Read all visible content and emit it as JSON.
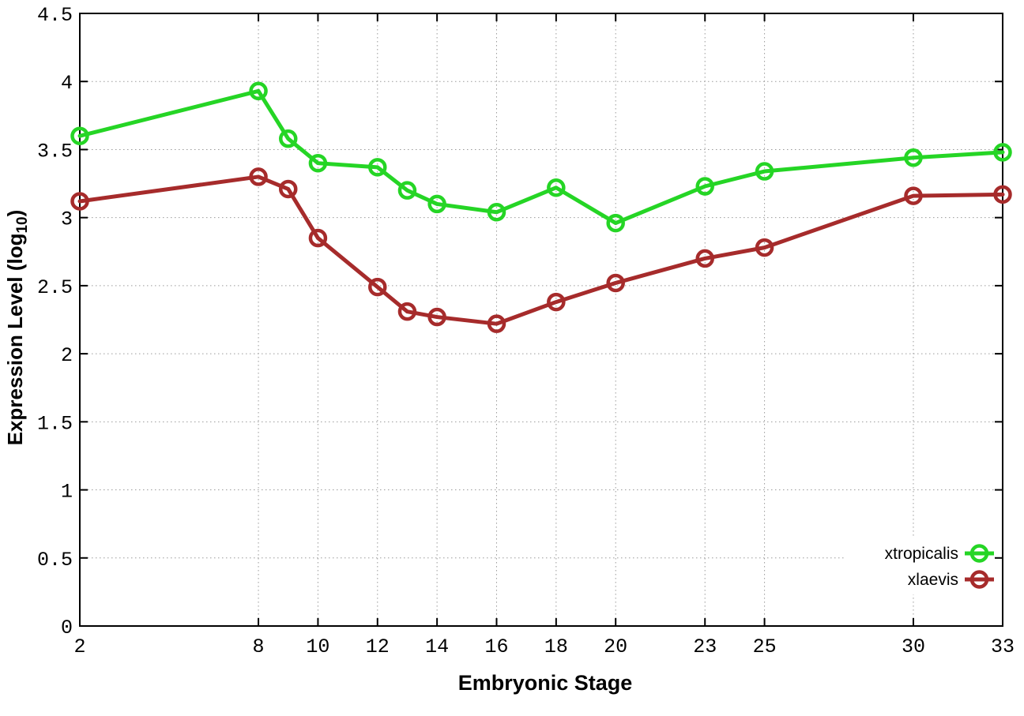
{
  "chart_data": {
    "type": "line",
    "title": "",
    "xlabel": "Embryonic Stage",
    "ylabel": {
      "prefix": "Expression Level (log",
      "sub": "10",
      "suffix": ")"
    },
    "xlim": [
      2,
      33
    ],
    "ylim": [
      0,
      4.5
    ],
    "grid": true,
    "x": [
      2,
      8,
      9,
      10,
      12,
      13,
      14,
      16,
      18,
      20,
      23,
      25,
      30,
      33
    ],
    "xticks": {
      "values": [
        2,
        8,
        10,
        12,
        14,
        16,
        18,
        20,
        23,
        25,
        30,
        33
      ],
      "labels": [
        "2",
        "8",
        "10",
        "12",
        "14",
        "16",
        "18",
        "20",
        "23",
        "25",
        "30",
        "33"
      ]
    },
    "yticks": {
      "values": [
        0,
        0.5,
        1,
        1.5,
        2,
        2.5,
        3,
        3.5,
        4,
        4.5
      ],
      "labels": [
        "0",
        "0.5",
        "1",
        "1.5",
        "2",
        "2.5",
        "3",
        "3.5",
        "4",
        "4.5"
      ]
    },
    "series": [
      {
        "name": "xtropicalis",
        "color": "#25d525",
        "marker": "open-circle",
        "values": [
          3.6,
          3.93,
          3.58,
          3.4,
          3.37,
          3.2,
          3.1,
          3.04,
          3.22,
          2.96,
          3.23,
          3.34,
          3.44,
          3.48
        ]
      },
      {
        "name": "xlaevis",
        "color": "#a62b2b",
        "marker": "open-circle",
        "values": [
          3.12,
          3.3,
          3.21,
          2.85,
          2.49,
          2.31,
          2.27,
          2.22,
          2.38,
          2.52,
          2.7,
          2.78,
          3.16,
          3.17
        ]
      }
    ],
    "legend": {
      "position": "inside-bottom-right"
    }
  },
  "colors": {
    "background": "#ffffff",
    "axis": "#000000",
    "grid": "#9a9a9a",
    "series_green": "#25d525",
    "series_darkred": "#a62b2b"
  }
}
